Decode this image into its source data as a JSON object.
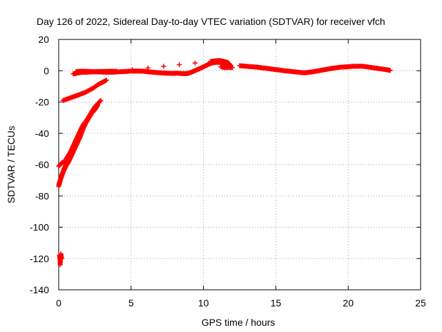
{
  "chart_data": {
    "type": "scatter",
    "title": "Day 126 of 2022, Sidereal Day-to-day VTEC variation (SDTVAR) for receiver vfch",
    "xlabel": "GPS time / hours",
    "ylabel": "SDTVAR / TECUs",
    "xlim": [
      0,
      25
    ],
    "ylim": [
      -140,
      20
    ],
    "xticks": [
      0,
      5,
      10,
      15,
      20,
      25
    ],
    "yticks": [
      -140,
      -120,
      -100,
      -80,
      -60,
      -40,
      -20,
      0,
      20
    ],
    "grid": true,
    "marker": "+",
    "color": "#ff0000",
    "series": [
      {
        "segments": [
          [
            [
              0.05,
              -118
            ],
            [
              0.1,
              -121
            ],
            [
              0.1,
              -124
            ],
            [
              0.15,
              -117
            ],
            [
              0.2,
              -120
            ]
          ],
          [
            [
              0.0,
              -73
            ],
            [
              0.1,
              -70
            ],
            [
              0.2,
              -67
            ],
            [
              0.35,
              -63
            ],
            [
              0.5,
              -60
            ],
            [
              0.7,
              -56
            ],
            [
              0.9,
              -52
            ],
            [
              1.1,
              -48
            ],
            [
              1.3,
              -44
            ],
            [
              1.5,
              -40
            ],
            [
              1.7,
              -36
            ],
            [
              1.9,
              -32
            ],
            [
              2.1,
              -29
            ],
            [
              2.3,
              -26
            ],
            [
              2.5,
              -23
            ],
            [
              2.7,
              -21
            ],
            [
              2.9,
              -19
            ]
          ],
          [
            [
              0.0,
              -74
            ],
            [
              0.15,
              -69
            ],
            [
              0.3,
              -65
            ],
            [
              0.5,
              -61
            ],
            [
              0.7,
              -58
            ],
            [
              0.9,
              -54
            ],
            [
              1.1,
              -50
            ],
            [
              1.3,
              -46
            ],
            [
              1.5,
              -42
            ],
            [
              1.7,
              -37
            ],
            [
              1.9,
              -33
            ],
            [
              2.1,
              -30
            ],
            [
              2.3,
              -27
            ],
            [
              2.5,
              -25
            ],
            [
              2.7,
              -22
            ]
          ],
          [
            [
              0.0,
              -61
            ],
            [
              0.2,
              -59
            ],
            [
              0.4,
              -58
            ],
            [
              0.6,
              -55
            ],
            [
              0.8,
              -52
            ],
            [
              1.0,
              -48
            ],
            [
              1.2,
              -44
            ],
            [
              1.4,
              -40
            ],
            [
              1.6,
              -36
            ],
            [
              1.8,
              -33
            ]
          ],
          [
            [
              0.3,
              -19
            ],
            [
              0.6,
              -18
            ],
            [
              0.9,
              -17
            ],
            [
              1.2,
              -16
            ],
            [
              1.5,
              -15
            ],
            [
              1.8,
              -14
            ],
            [
              2.1,
              -12.5
            ],
            [
              2.4,
              -11
            ],
            [
              2.7,
              -9
            ],
            [
              3.0,
              -7.5
            ],
            [
              3.3,
              -6
            ]
          ],
          [
            [
              1.0,
              -2
            ],
            [
              1.3,
              -1.5
            ],
            [
              1.6,
              -1
            ],
            [
              1.9,
              -1
            ],
            [
              2.2,
              -0.8
            ],
            [
              2.5,
              -0.7
            ],
            [
              2.8,
              -0.8
            ],
            [
              3.1,
              -0.9
            ],
            [
              3.4,
              -1
            ],
            [
              3.7,
              -1
            ],
            [
              4.0,
              -0.8
            ],
            [
              4.3,
              -0.6
            ],
            [
              4.6,
              -0.5
            ],
            [
              4.9,
              -0.3
            ],
            [
              5.2,
              -0.2
            ],
            [
              5.5,
              -0.2
            ],
            [
              5.8,
              -0.3
            ],
            [
              6.1,
              -0.6
            ],
            [
              6.4,
              -0.9
            ],
            [
              6.7,
              -1.1
            ],
            [
              7.0,
              -1.3
            ],
            [
              7.3,
              -1.5
            ],
            [
              7.6,
              -1.6
            ],
            [
              7.9,
              -1.7
            ],
            [
              8.2,
              -1.6
            ],
            [
              8.5,
              -1.8
            ],
            [
              8.8,
              -1.9
            ],
            [
              9.0,
              -1.5
            ],
            [
              9.2,
              -0.8
            ],
            [
              9.4,
              0.0
            ],
            [
              9.6,
              0.8
            ],
            [
              9.8,
              1.6
            ],
            [
              10.0,
              2.5
            ],
            [
              10.2,
              3.4
            ],
            [
              10.4,
              4.3
            ],
            [
              10.6,
              5.0
            ],
            [
              10.8,
              5.3
            ],
            [
              11.0,
              5.4
            ],
            [
              11.2,
              5.2
            ],
            [
              11.4,
              4.8
            ],
            [
              11.6,
              4.3
            ]
          ],
          [
            [
              1.2,
              -0.5
            ],
            [
              1.6,
              -0.3
            ],
            [
              2.0,
              -0.4
            ],
            [
              2.4,
              -0.6
            ],
            [
              2.8,
              -0.5
            ],
            [
              3.2,
              -0.4
            ],
            [
              3.6,
              -0.3
            ],
            [
              4.0,
              -0.4
            ],
            [
              10.5,
              6.0
            ],
            [
              10.8,
              6.3
            ],
            [
              11.1,
              6.5
            ],
            [
              11.4,
              6.0
            ],
            [
              11.7,
              5.2
            ],
            [
              11.9,
              3.0
            ],
            [
              11.2,
              2.5
            ],
            [
              11.5,
              2.0
            ],
            [
              12.0,
              2.0
            ]
          ],
          [
            [
              12.5,
              3.2
            ],
            [
              12.8,
              3.0
            ],
            [
              13.1,
              2.7
            ],
            [
              13.4,
              2.5
            ],
            [
              13.7,
              2.3
            ],
            [
              14.0,
              1.9
            ],
            [
              14.3,
              1.6
            ],
            [
              14.6,
              1.2
            ],
            [
              14.9,
              0.8
            ],
            [
              15.2,
              0.5
            ],
            [
              15.5,
              0.1
            ],
            [
              15.8,
              -0.2
            ],
            [
              16.1,
              -0.5
            ],
            [
              16.4,
              -0.8
            ],
            [
              16.7,
              -1.1
            ],
            [
              17.0,
              -1.3
            ],
            [
              17.3,
              -1.0
            ],
            [
              17.6,
              -0.6
            ],
            [
              17.9,
              -0.1
            ],
            [
              18.2,
              0.4
            ],
            [
              18.5,
              0.9
            ],
            [
              18.8,
              1.4
            ],
            [
              19.1,
              1.8
            ],
            [
              19.4,
              2.2
            ],
            [
              19.7,
              2.4
            ],
            [
              20.0,
              2.6
            ],
            [
              20.3,
              2.8
            ],
            [
              20.6,
              2.8
            ],
            [
              20.9,
              2.9
            ],
            [
              21.2,
              2.6
            ],
            [
              21.5,
              2.2
            ],
            [
              21.8,
              1.8
            ],
            [
              22.1,
              1.4
            ],
            [
              22.4,
              1.0
            ],
            [
              22.7,
              0.6
            ],
            [
              22.9,
              0.2
            ]
          ]
        ]
      }
    ]
  }
}
